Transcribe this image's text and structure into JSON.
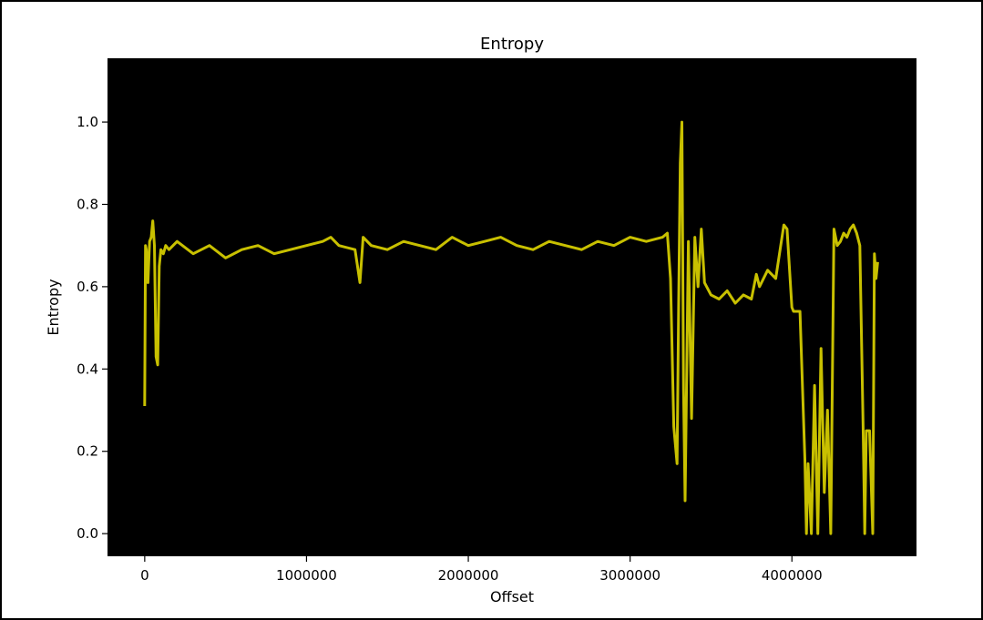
{
  "chart_data": {
    "type": "line",
    "title": "Entropy",
    "xlabel": "Offset",
    "ylabel": "Entropy",
    "xlim": [
      -230000,
      4770000
    ],
    "ylim": [
      -0.055,
      1.155
    ],
    "x_ticks": [
      0,
      1000000,
      2000000,
      3000000,
      4000000
    ],
    "x_tick_labels": [
      "0",
      "1000000",
      "2000000",
      "3000000",
      "4000000"
    ],
    "y_ticks": [
      0.0,
      0.2,
      0.4,
      0.6,
      0.8,
      1.0
    ],
    "y_tick_labels": [
      "0.0",
      "0.2",
      "0.4",
      "0.6",
      "0.8",
      "1.0"
    ],
    "grid": false,
    "plot_background": "#000000",
    "line_color": "#c8c000",
    "series": [
      {
        "values_x": [
          0,
          5000,
          10000,
          20000,
          30000,
          40000,
          50000,
          60000,
          70000,
          80000,
          90000,
          100000,
          115000,
          130000,
          150000,
          200000,
          300000,
          400000,
          500000,
          600000,
          700000,
          800000,
          900000,
          1000000,
          1100000,
          1150000,
          1200000,
          1300000,
          1330000,
          1350000,
          1400000,
          1500000,
          1600000,
          1700000,
          1800000,
          1900000,
          2000000,
          2100000,
          2200000,
          2300000,
          2400000,
          2500000,
          2600000,
          2700000,
          2800000,
          2900000,
          3000000,
          3100000,
          3200000,
          3230000,
          3250000,
          3270000,
          3290000,
          3300000,
          3310000,
          3320000,
          3330000,
          3340000,
          3360000,
          3380000,
          3400000,
          3420000,
          3440000,
          3460000,
          3500000,
          3550000,
          3600000,
          3650000,
          3700000,
          3750000,
          3780000,
          3800000,
          3850000,
          3900000,
          3950000,
          3970000,
          4000000,
          4010000,
          4050000,
          4080000,
          4090000,
          4100000,
          4120000,
          4140000,
          4160000,
          4180000,
          4200000,
          4220000,
          4240000,
          4260000,
          4280000,
          4300000,
          4320000,
          4340000,
          4360000,
          4380000,
          4400000,
          4420000,
          4440000,
          4450000,
          4460000,
          4480000,
          4500000,
          4510000,
          4520000,
          4530000
        ],
        "values_y": [
          0.31,
          0.7,
          0.69,
          0.61,
          0.71,
          0.72,
          0.76,
          0.7,
          0.43,
          0.41,
          0.65,
          0.69,
          0.68,
          0.7,
          0.69,
          0.71,
          0.68,
          0.7,
          0.67,
          0.69,
          0.7,
          0.68,
          0.69,
          0.7,
          0.71,
          0.72,
          0.7,
          0.69,
          0.61,
          0.72,
          0.7,
          0.69,
          0.71,
          0.7,
          0.69,
          0.72,
          0.7,
          0.71,
          0.72,
          0.7,
          0.69,
          0.71,
          0.7,
          0.69,
          0.71,
          0.7,
          0.72,
          0.71,
          0.72,
          0.73,
          0.62,
          0.26,
          0.17,
          0.55,
          0.9,
          1.0,
          0.35,
          0.08,
          0.71,
          0.28,
          0.72,
          0.6,
          0.74,
          0.61,
          0.58,
          0.57,
          0.59,
          0.56,
          0.58,
          0.57,
          0.63,
          0.6,
          0.64,
          0.62,
          0.75,
          0.74,
          0.55,
          0.54,
          0.54,
          0.18,
          0.0,
          0.17,
          0.0,
          0.36,
          0.0,
          0.45,
          0.1,
          0.3,
          0.0,
          0.74,
          0.7,
          0.71,
          0.73,
          0.72,
          0.74,
          0.75,
          0.73,
          0.7,
          0.26,
          0.0,
          0.25,
          0.25,
          0.0,
          0.68,
          0.62,
          0.66
        ]
      }
    ]
  }
}
